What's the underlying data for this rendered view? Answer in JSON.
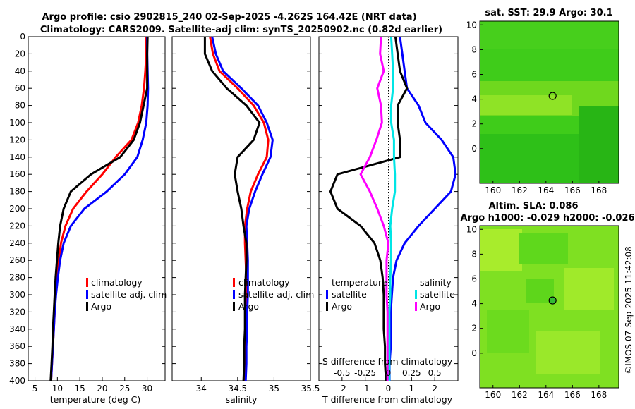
{
  "chart_data": [
    {
      "type": "line",
      "name": "temperature-profile",
      "xlabel": "temperature (deg C)",
      "xlim": [
        3.5,
        34
      ],
      "xticks": [
        5,
        10,
        15,
        20,
        25,
        30
      ],
      "ylim": [
        0,
        400
      ],
      "yticks": [
        0,
        20,
        40,
        60,
        80,
        100,
        120,
        140,
        160,
        180,
        200,
        220,
        240,
        260,
        280,
        300,
        320,
        340,
        360,
        380,
        400
      ],
      "legend": [
        "climatology",
        "satellite-adj. clim",
        "Argo"
      ],
      "series": [
        {
          "name": "climatology",
          "color": "#ff0000",
          "points": [
            [
              29.8,
              0
            ],
            [
              29.8,
              20
            ],
            [
              29.6,
              40
            ],
            [
              29.3,
              60
            ],
            [
              28.8,
              80
            ],
            [
              28,
              100
            ],
            [
              26.5,
              120
            ],
            [
              23,
              140
            ],
            [
              20,
              160
            ],
            [
              16.5,
              180
            ],
            [
              13.5,
              200
            ],
            [
              11.8,
              220
            ],
            [
              10.8,
              240
            ],
            [
              10.3,
              260
            ],
            [
              9.9,
              280
            ],
            [
              9.6,
              300
            ],
            [
              9.4,
              320
            ],
            [
              9.2,
              340
            ],
            [
              9.0,
              360
            ],
            [
              8.8,
              380
            ],
            [
              8.6,
              400
            ]
          ]
        },
        {
          "name": "satellite-adj. clim",
          "color": "#0000ff",
          "points": [
            [
              30,
              0
            ],
            [
              30,
              20
            ],
            [
              30.1,
              40
            ],
            [
              30.2,
              60
            ],
            [
              30.1,
              80
            ],
            [
              29.8,
              100
            ],
            [
              29,
              120
            ],
            [
              27.8,
              140
            ],
            [
              25,
              160
            ],
            [
              21,
              180
            ],
            [
              16,
              200
            ],
            [
              13,
              220
            ],
            [
              11.4,
              240
            ],
            [
              10.6,
              260
            ],
            [
              10.1,
              280
            ],
            [
              9.7,
              300
            ],
            [
              9.4,
              320
            ],
            [
              9.2,
              340
            ],
            [
              9.0,
              360
            ],
            [
              8.8,
              380
            ],
            [
              8.6,
              400
            ]
          ]
        },
        {
          "name": "Argo",
          "color": "#000000",
          "points": [
            [
              30.1,
              0
            ],
            [
              30,
              20
            ],
            [
              30,
              40
            ],
            [
              30,
              60
            ],
            [
              29.2,
              80
            ],
            [
              28.4,
              100
            ],
            [
              27,
              120
            ],
            [
              24,
              140
            ],
            [
              17.5,
              160
            ],
            [
              13,
              180
            ],
            [
              11.4,
              200
            ],
            [
              10.6,
              220
            ],
            [
              10.2,
              240
            ],
            [
              9.9,
              260
            ],
            [
              9.6,
              280
            ],
            [
              9.4,
              300
            ],
            [
              9.2,
              320
            ],
            [
              9.0,
              340
            ],
            [
              8.9,
              360
            ],
            [
              8.7,
              380
            ],
            [
              8.5,
              400
            ]
          ]
        }
      ]
    },
    {
      "type": "line",
      "name": "salinity-profile",
      "xlabel": "salinity",
      "xlim": [
        33.6,
        35.5
      ],
      "xticks": [
        34,
        34.5,
        35,
        35.5
      ],
      "ylim": [
        0,
        400
      ],
      "legend": [
        "climatology",
        "satellite-adj. clim",
        "Argo"
      ],
      "series": [
        {
          "name": "climatology",
          "color": "#ff0000",
          "points": [
            [
              34.12,
              0
            ],
            [
              34.16,
              20
            ],
            [
              34.25,
              40
            ],
            [
              34.5,
              60
            ],
            [
              34.72,
              80
            ],
            [
              34.86,
              100
            ],
            [
              34.92,
              120
            ],
            [
              34.9,
              140
            ],
            [
              34.78,
              160
            ],
            [
              34.68,
              180
            ],
            [
              34.63,
              200
            ],
            [
              34.6,
              220
            ],
            [
              34.6,
              240
            ],
            [
              34.61,
              260
            ],
            [
              34.62,
              280
            ],
            [
              34.62,
              300
            ],
            [
              34.62,
              320
            ],
            [
              34.62,
              340
            ],
            [
              34.61,
              360
            ],
            [
              34.61,
              380
            ],
            [
              34.6,
              400
            ]
          ]
        },
        {
          "name": "satellite-adj. clim",
          "color": "#0000ff",
          "points": [
            [
              34.15,
              0
            ],
            [
              34.2,
              20
            ],
            [
              34.3,
              40
            ],
            [
              34.55,
              60
            ],
            [
              34.78,
              80
            ],
            [
              34.9,
              100
            ],
            [
              34.98,
              120
            ],
            [
              34.95,
              140
            ],
            [
              34.84,
              160
            ],
            [
              34.74,
              180
            ],
            [
              34.66,
              200
            ],
            [
              34.62,
              220
            ],
            [
              34.63,
              240
            ],
            [
              34.64,
              260
            ],
            [
              34.64,
              280
            ],
            [
              34.64,
              300
            ],
            [
              34.63,
              320
            ],
            [
              34.63,
              340
            ],
            [
              34.62,
              360
            ],
            [
              34.62,
              380
            ],
            [
              34.61,
              400
            ]
          ]
        },
        {
          "name": "Argo",
          "color": "#000000",
          "points": [
            [
              34.05,
              0
            ],
            [
              34.05,
              20
            ],
            [
              34.15,
              40
            ],
            [
              34.35,
              60
            ],
            [
              34.62,
              80
            ],
            [
              34.8,
              100
            ],
            [
              34.72,
              120
            ],
            [
              34.5,
              140
            ],
            [
              34.46,
              160
            ],
            [
              34.5,
              180
            ],
            [
              34.55,
              200
            ],
            [
              34.58,
              220
            ],
            [
              34.62,
              240
            ],
            [
              34.62,
              260
            ],
            [
              34.61,
              280
            ],
            [
              34.6,
              300
            ],
            [
              34.6,
              320
            ],
            [
              34.6,
              340
            ],
            [
              34.59,
              360
            ],
            [
              34.59,
              380
            ],
            [
              34.58,
              400
            ]
          ]
        }
      ]
    },
    {
      "type": "line",
      "name": "difference-profile",
      "xlabel": "T difference from climatology",
      "xlabel_top": "S difference from climatology",
      "xlim": [
        -3,
        3
      ],
      "xticks": [
        -2,
        -1,
        0,
        1,
        2
      ],
      "xticks_top": [
        -0.5,
        -0.25,
        0,
        0.25,
        0.5
      ],
      "ylim": [
        0,
        400
      ],
      "legend_temperature_title": "temperature",
      "legend_salinity_title": "salinity",
      "legend_temperature": [
        "satellite",
        "Argo"
      ],
      "legend_salinity": [
        "satellite",
        "Argo"
      ],
      "series": [
        {
          "name": "T satellite",
          "color": "#0000ff",
          "points": [
            [
              0.5,
              0
            ],
            [
              0.6,
              20
            ],
            [
              0.7,
              40
            ],
            [
              0.8,
              60
            ],
            [
              1.3,
              80
            ],
            [
              1.6,
              100
            ],
            [
              2.3,
              120
            ],
            [
              2.8,
              140
            ],
            [
              2.9,
              160
            ],
            [
              2.7,
              180
            ],
            [
              2,
              200
            ],
            [
              1.3,
              220
            ],
            [
              0.7,
              240
            ],
            [
              0.35,
              260
            ],
            [
              0.2,
              280
            ],
            [
              0.15,
              300
            ],
            [
              0.1,
              320
            ],
            [
              0.1,
              340
            ],
            [
              0.1,
              360
            ],
            [
              0.05,
              380
            ],
            [
              0.05,
              400
            ]
          ]
        },
        {
          "name": "T Argo",
          "color": "#000000",
          "points": [
            [
              0.3,
              0
            ],
            [
              0.4,
              20
            ],
            [
              0.5,
              40
            ],
            [
              0.8,
              60
            ],
            [
              0.4,
              80
            ],
            [
              0.4,
              100
            ],
            [
              0.5,
              120
            ],
            [
              0.5,
              140
            ],
            [
              -2.2,
              160
            ],
            [
              -2.5,
              180
            ],
            [
              -2.2,
              200
            ],
            [
              -1.2,
              220
            ],
            [
              -0.6,
              240
            ],
            [
              -0.35,
              260
            ],
            [
              -0.25,
              280
            ],
            [
              -0.2,
              300
            ],
            [
              -0.2,
              320
            ],
            [
              -0.2,
              340
            ],
            [
              -0.15,
              360
            ],
            [
              -0.15,
              380
            ],
            [
              -0.1,
              400
            ]
          ]
        },
        {
          "name": "S satellite",
          "color": "#00e5e5",
          "points": [
            [
              0.03,
              0
            ],
            [
              0.04,
              20
            ],
            [
              0.05,
              40
            ],
            [
              0.05,
              60
            ],
            [
              0.03,
              80
            ],
            [
              0.03,
              100
            ],
            [
              0.06,
              120
            ],
            [
              0.06,
              140
            ],
            [
              0.07,
              160
            ],
            [
              0.07,
              180
            ],
            [
              0.04,
              200
            ],
            [
              0.02,
              220
            ],
            [
              0.03,
              240
            ],
            [
              0.03,
              260
            ],
            [
              0.02,
              280
            ],
            [
              0.02,
              300
            ],
            [
              0.01,
              320
            ],
            [
              0.01,
              340
            ],
            [
              0.01,
              360
            ],
            [
              0.01,
              380
            ],
            [
              0.01,
              400
            ]
          ]
        },
        {
          "name": "S Argo",
          "color": "#ff00ff",
          "points": [
            [
              -0.08,
              0
            ],
            [
              -0.09,
              20
            ],
            [
              -0.05,
              40
            ],
            [
              -0.12,
              60
            ],
            [
              -0.08,
              80
            ],
            [
              -0.07,
              100
            ],
            [
              -0.13,
              120
            ],
            [
              -0.2,
              140
            ],
            [
              -0.3,
              160
            ],
            [
              -0.2,
              180
            ],
            [
              -0.12,
              200
            ],
            [
              -0.05,
              220
            ],
            [
              0.0,
              240
            ],
            [
              -0.02,
              260
            ],
            [
              -0.02,
              280
            ],
            [
              -0.02,
              300
            ],
            [
              -0.01,
              320
            ],
            [
              -0.01,
              340
            ],
            [
              -0.01,
              360
            ],
            [
              -0.01,
              380
            ],
            [
              -0.01,
              400
            ]
          ]
        }
      ]
    },
    {
      "type": "heatmap",
      "name": "sst-map",
      "title": "sat. SST: 29.9 Argo: 30.1",
      "xlim": [
        159,
        169.5
      ],
      "ylim": [
        -2.8,
        10.3
      ],
      "xticks": [
        160,
        162,
        164,
        166,
        168
      ],
      "yticks": [
        0,
        2,
        4,
        6,
        8,
        10
      ],
      "marker": [
        164.5,
        4.26
      ]
    },
    {
      "type": "heatmap",
      "name": "sla-map",
      "title": "Altim. SLA: 0.086",
      "subtitle": "Argo h1000: -0.029 h2000: -0.026",
      "xlim": [
        159,
        169.5
      ],
      "ylim": [
        -2.8,
        10.3
      ],
      "xticks": [
        160,
        162,
        164,
        166,
        168
      ],
      "yticks": [
        0,
        2,
        4,
        6,
        8,
        10
      ],
      "marker": [
        164.5,
        4.26
      ]
    }
  ],
  "header": {
    "title_line1": "Argo profile: csio 2902815_240 02-Sep-2025 -4.262S 164.42E (NRT data)",
    "title_line2": "Climatology: CARS2009. Satellite-adj clim: synTS_20250902.nc (0.82d earlier)"
  },
  "credit": "©IMOS 07-Sep-2025 11:42:08",
  "colors": {
    "climatology": "#ff0000",
    "satellite": "#0000ff",
    "argo": "#000000",
    "s_satellite": "#00e5e5",
    "s_argo": "#ff00ff"
  }
}
